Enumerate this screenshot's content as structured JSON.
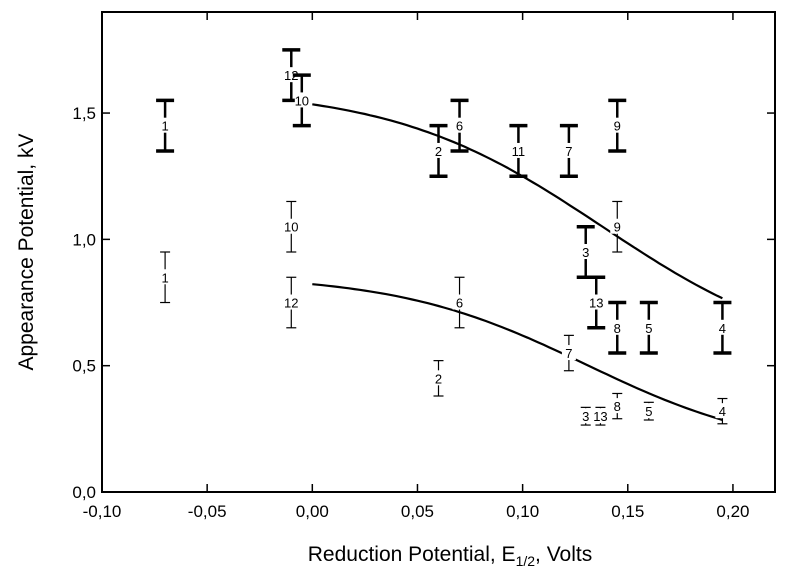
{
  "chart_data": {
    "type": "scatter",
    "title": "",
    "xlabel_main": "Reduction Potential, E",
    "xlabel_sub": "1/2",
    "xlabel_tail": ", Volts",
    "ylabel": "Appearance Potential, kV",
    "xlim": [
      -0.1,
      0.22
    ],
    "ylim": [
      0.0,
      1.9
    ],
    "xticks": [
      -0.1,
      -0.05,
      0.0,
      0.05,
      0.1,
      0.15,
      0.2
    ],
    "xtick_labels": [
      "-0,10",
      "-0,05",
      "0,00",
      "0,05",
      "0,10",
      "0,15",
      "0,20"
    ],
    "yticks": [
      0.0,
      0.5,
      1.0,
      1.5
    ],
    "ytick_labels": [
      "0,0",
      "0,5",
      "1,0",
      "1,5"
    ],
    "grid": false,
    "series": [
      {
        "style": "bold",
        "points": [
          {
            "label": "1",
            "x": -0.07,
            "y": 1.45,
            "err": 0.1
          },
          {
            "label": "12",
            "x": -0.01,
            "y": 1.65,
            "err": 0.1
          },
          {
            "label": "10",
            "x": -0.005,
            "y": 1.55,
            "err": 0.1
          },
          {
            "label": "6",
            "x": 0.07,
            "y": 1.45,
            "err": 0.1
          },
          {
            "label": "2",
            "x": 0.06,
            "y": 1.35,
            "err": 0.1
          },
          {
            "label": "11",
            "x": 0.098,
            "y": 1.35,
            "err": 0.1
          },
          {
            "label": "7",
            "x": 0.122,
            "y": 1.35,
            "err": 0.1
          },
          {
            "label": "9",
            "x": 0.145,
            "y": 1.45,
            "err": 0.1
          },
          {
            "label": "3",
            "x": 0.13,
            "y": 0.95,
            "err": 0.1
          },
          {
            "label": "13",
            "x": 0.135,
            "y": 0.75,
            "err": 0.1
          },
          {
            "label": "8",
            "x": 0.145,
            "y": 0.65,
            "err": 0.1
          },
          {
            "label": "5",
            "x": 0.16,
            "y": 0.65,
            "err": 0.1
          },
          {
            "label": "4",
            "x": 0.195,
            "y": 0.65,
            "err": 0.1
          }
        ],
        "fit_curve": {
          "y_high": 1.6,
          "y_low": 0.5,
          "center": 0.138,
          "width": 0.05
        }
      },
      {
        "style": "thin",
        "points": [
          {
            "label": "1",
            "x": -0.07,
            "y": 0.85,
            "err": 0.1
          },
          {
            "label": "10",
            "x": -0.01,
            "y": 1.05,
            "err": 0.1
          },
          {
            "label": "12",
            "x": -0.01,
            "y": 0.75,
            "err": 0.1
          },
          {
            "label": "6",
            "x": 0.07,
            "y": 0.75,
            "err": 0.1
          },
          {
            "label": "2",
            "x": 0.06,
            "y": 0.45,
            "err": 0.07
          },
          {
            "label": "7",
            "x": 0.122,
            "y": 0.55,
            "err": 0.07
          },
          {
            "label": "9",
            "x": 0.145,
            "y": 1.05,
            "err": 0.1
          },
          {
            "label": "3",
            "x": 0.13,
            "y": 0.3,
            "err": 0.035
          },
          {
            "label": "13",
            "x": 0.137,
            "y": 0.3,
            "err": 0.035
          },
          {
            "label": "8",
            "x": 0.145,
            "y": 0.34,
            "err": 0.05
          },
          {
            "label": "5",
            "x": 0.16,
            "y": 0.32,
            "err": 0.035
          },
          {
            "label": "4",
            "x": 0.195,
            "y": 0.32,
            "err": 0.05
          }
        ],
        "fit_curve": {
          "y_high": 0.86,
          "y_low": 0.15,
          "center": 0.13,
          "width": 0.045
        }
      }
    ]
  }
}
